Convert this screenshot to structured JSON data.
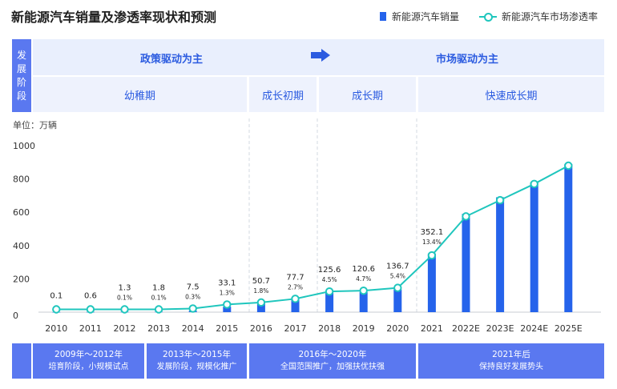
{
  "title": "新能源汽车销量及渗透率现状和预测",
  "legend": {
    "bar": "新能源汽车销量",
    "line": "新能源汽车市场渗透率"
  },
  "stage_label": [
    "发",
    "展",
    "阶",
    "段"
  ],
  "policy": {
    "left": "政策驱动为主",
    "right": "市场驱动为主"
  },
  "phases": [
    "幼稚期",
    "成长初期",
    "成长期",
    "快速成长期"
  ],
  "unit": "单位：万辆",
  "footer": [
    {
      "period": "2009年～2012年",
      "desc": "培育阶段，小规模试点"
    },
    {
      "period": "2013年～2015年",
      "desc": "发展阶段，规模化推广"
    },
    {
      "period": "2016年～2020年",
      "desc": "全国范围推广，加强扶优扶强"
    },
    {
      "period": "2021年后",
      "desc": "保持良好发展势头"
    }
  ],
  "colors": {
    "bar": "#2563eb",
    "line": "#1fc6bd",
    "accent": "#5a78f0"
  },
  "chart_data": {
    "type": "bar",
    "categories": [
      "2010",
      "2011",
      "2012",
      "2013",
      "2014",
      "2015",
      "2016",
      "2017",
      "2018",
      "2019",
      "2020",
      "2021",
      "2022E",
      "2023E",
      "2024E",
      "2025E"
    ],
    "yticks": [
      "0",
      "200",
      "400",
      "600",
      "800",
      "1000"
    ],
    "ylim": [
      0,
      1000
    ],
    "series": [
      {
        "name": "新能源汽车销量",
        "type": "bar",
        "values": [
          0.1,
          0.6,
          1.3,
          1.8,
          7.5,
          33.1,
          50.7,
          77.7,
          125.6,
          120.6,
          136.7,
          352.1,
          590,
          690,
          780,
          890
        ]
      },
      {
        "name": "新能源汽车市场渗透率",
        "type": "line",
        "values": [
          0.1,
          0.1,
          0.1,
          0.1,
          0.3,
          1.3,
          1.8,
          2.7,
          4.5,
          4.7,
          5.4,
          13.4,
          23,
          27,
          31,
          35.5
        ]
      }
    ],
    "value_labels": [
      "0.1",
      "0.6",
      "1.3",
      "1.8",
      "7.5",
      "33.1",
      "50.7",
      "77.7",
      "125.6",
      "120.6",
      "136.7",
      "352.1",
      "",
      "",
      "",
      ""
    ],
    "rate_labels": [
      "",
      "",
      "0.1%",
      "0.1%",
      "0.3%",
      "1.3%",
      "1.8%",
      "2.7%",
      "4.5%",
      "4.7%",
      "5.4%",
      "13.4%",
      "",
      "",
      "",
      ""
    ]
  }
}
